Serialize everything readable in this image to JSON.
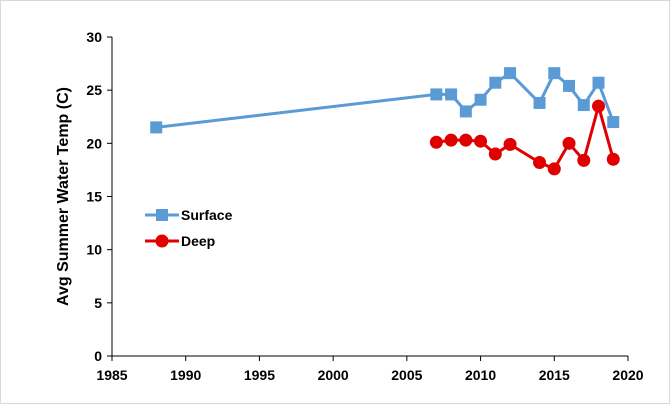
{
  "chart_data": {
    "type": "line",
    "title": "",
    "xlabel": "",
    "ylabel": "Avg Summer Water Temp (C)",
    "xlim": [
      1985,
      2020
    ],
    "ylim": [
      0,
      30
    ],
    "xticks": [
      1985,
      1990,
      1995,
      2000,
      2005,
      2010,
      2015,
      2020
    ],
    "yticks": [
      0,
      5,
      10,
      15,
      20,
      25,
      30
    ],
    "grid": false,
    "legend_position": "left-middle",
    "series": [
      {
        "name": "Surface",
        "color": "#5b9bd5",
        "marker": "square",
        "points": [
          {
            "x": 1988,
            "y": 21.5
          },
          {
            "x": 2007,
            "y": 24.6
          },
          {
            "x": 2008,
            "y": 24.6
          },
          {
            "x": 2009,
            "y": 23.0
          },
          {
            "x": 2010,
            "y": 24.1
          },
          {
            "x": 2011,
            "y": 25.7
          },
          {
            "x": 2012,
            "y": 26.6
          },
          {
            "x": 2014,
            "y": 23.8
          },
          {
            "x": 2015,
            "y": 26.6
          },
          {
            "x": 2016,
            "y": 25.4
          },
          {
            "x": 2017,
            "y": 23.6
          },
          {
            "x": 2018,
            "y": 25.7
          },
          {
            "x": 2019,
            "y": 22.0
          }
        ]
      },
      {
        "name": "Deep",
        "color": "#e00000",
        "marker": "circle",
        "points": [
          {
            "x": 2007,
            "y": 20.1
          },
          {
            "x": 2008,
            "y": 20.3
          },
          {
            "x": 2009,
            "y": 20.3
          },
          {
            "x": 2010,
            "y": 20.2
          },
          {
            "x": 2011,
            "y": 19.0
          },
          {
            "x": 2012,
            "y": 19.9
          },
          {
            "x": 2014,
            "y": 18.2
          },
          {
            "x": 2015,
            "y": 17.6
          },
          {
            "x": 2016,
            "y": 20.0
          },
          {
            "x": 2017,
            "y": 18.4
          },
          {
            "x": 2018,
            "y": 23.5
          },
          {
            "x": 2019,
            "y": 18.5
          }
        ]
      }
    ]
  }
}
